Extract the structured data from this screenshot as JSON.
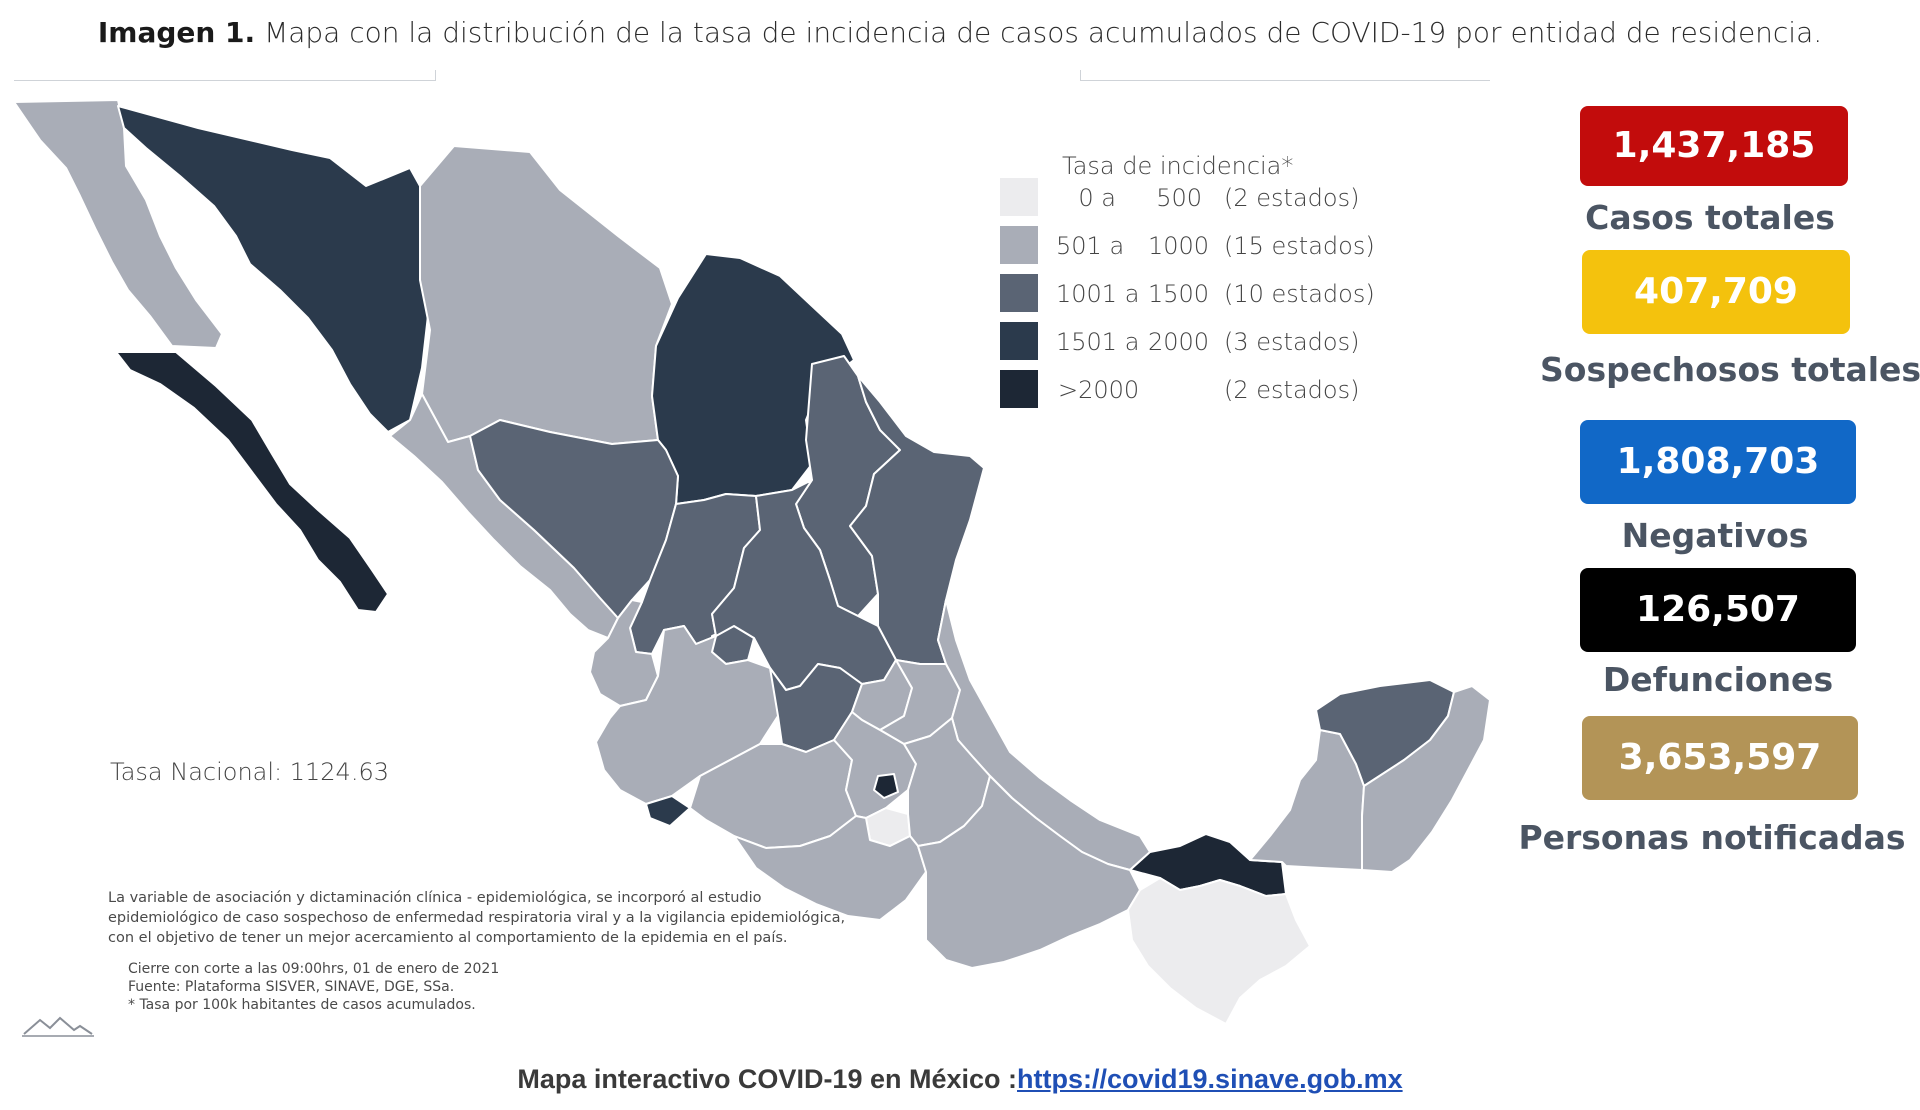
{
  "header": {
    "caption_bold": "Imagen 1.",
    "caption_text": " Mapa con la distribución de la tasa de incidencia de casos acumulados de COVID-19 por entidad de residencia."
  },
  "legend": {
    "title": "Tasa de incidencia*",
    "rows": [
      {
        "min": "0 a",
        "max": "500",
        "count": "(2 estados)",
        "color": "#ececee"
      },
      {
        "min": "501 a",
        "max": "1000",
        "count": "(15 estados)",
        "color": "#a9adb7"
      },
      {
        "min": "1001 a",
        "max": "1500",
        "count": "(10 estados)",
        "color": "#5a6474"
      },
      {
        "min": "1501 a",
        "max": "2000",
        "count": "(3 estados)",
        "color": "#2b3a4c"
      },
      {
        "min": ">2000",
        "max": "",
        "count": "(2 estados)",
        "color": "#1d2735"
      }
    ]
  },
  "map": {
    "tasa_nacional": "Tasa Nacional: 1124.63"
  },
  "notes": {
    "line1": "La variable de asociación y dictaminación clínica - epidemiológica, se incorporó al estudio",
    "line2": "epidemiológico de caso sospechoso de enfermedad respiratoria viral y a la vigilancia epidemiológica,",
    "line3": "con el objetivo de tener un mejor acercamiento al comportamiento de la epidemia en el país.",
    "cierre": "Cierre con corte a las 09:00hrs, 01 de enero de 2021",
    "fuente": "Fuente: Plataforma SISVER, SINAVE, DGE, SSa.",
    "tasa_nota": "* Tasa por 100k habitantes de casos acumulados."
  },
  "stats": [
    {
      "value": "1,437,185",
      "label": "Casos totales",
      "color": "#c20c0c"
    },
    {
      "value": "407,709",
      "label": "Sospechosos totales",
      "color": "#f4c20d"
    },
    {
      "value": "1,808,703",
      "label": "Negativos",
      "color": "#1168c7"
    },
    {
      "value": "126,507",
      "label": "Defunciones",
      "color": "#000000"
    },
    {
      "value": "3,653,597",
      "label": "Personas notificadas",
      "color": "#b39457"
    }
  ],
  "footer": {
    "text": "Mapa interactivo COVID-19 en México :",
    "link": "https://covid19.sinave.gob.mx"
  }
}
